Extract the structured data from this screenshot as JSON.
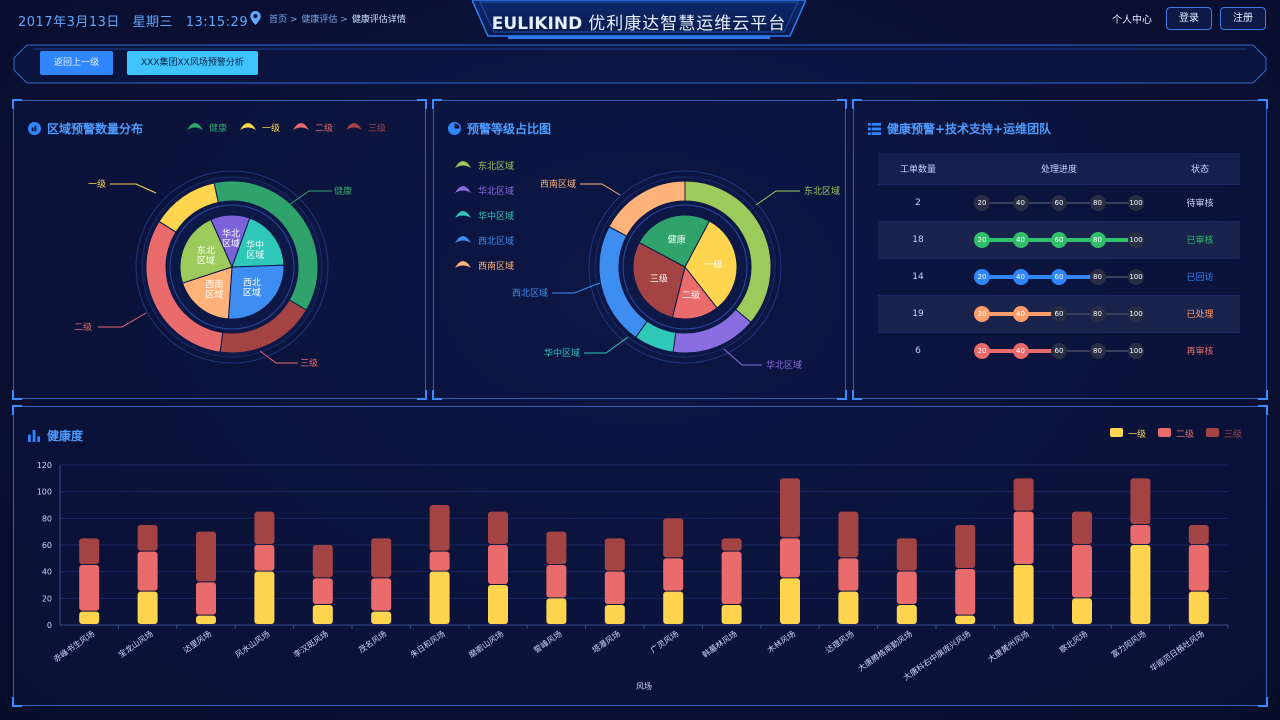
{
  "header": {
    "date": "2017年3月13日",
    "weekday": "星期三",
    "time": "13:15:29",
    "breadcrumbs": [
      "首页 >",
      "健康评估 >",
      "健康评估详情"
    ],
    "brand": "EULIKIND",
    "title": "优利康达智慧运维云平台",
    "user_center": "个人中心",
    "login": "登录",
    "register": "注册"
  },
  "subbar": {
    "back": "返回上一级",
    "tab": "XXX集团XX风场预警分析"
  },
  "panel_region": {
    "title": "区域预警数量分布",
    "legend": [
      {
        "name": "健康",
        "color": "#2fa36b"
      },
      {
        "name": "一级",
        "color": "#ffd54f"
      },
      {
        "name": "二级",
        "color": "#e96b6b"
      },
      {
        "name": "三级",
        "color": "#a34343"
      }
    ],
    "outer_labels": {
      "a": "健康",
      "b": "一级",
      "c": "二级",
      "d": "三级"
    },
    "inner_labels": {
      "p1": "华北区域",
      "p2": "华中区域",
      "p3": "西北区域",
      "p4": "西南区域",
      "p5": "东北区域"
    }
  },
  "panel_level": {
    "title": "预警等级占比图",
    "legend": [
      {
        "name": "东北区域",
        "color": "#9ccb5b"
      },
      {
        "name": "华北区域",
        "color": "#8a6de0"
      },
      {
        "name": "华中区域",
        "color": "#2ec7b8"
      },
      {
        "name": "西北区域",
        "color": "#3d8ef0"
      },
      {
        "name": "西南区域",
        "color": "#ffb27a"
      }
    ],
    "outer_labels": {
      "a": "东北区域",
      "b": "华北区域",
      "c": "华中区域",
      "d": "西北区域",
      "e": "西南区域"
    },
    "inner_labels": {
      "p1": "健康",
      "p2": "一级",
      "p3": "二级",
      "p4": "三级"
    }
  },
  "panel_team": {
    "title": "健康预警+技术支持+运维团队",
    "headers": [
      "工单数量",
      "处理进度",
      "状态"
    ],
    "ticks": [
      "20",
      "40",
      "60",
      "80",
      "100"
    ],
    "rows": [
      {
        "count": "2",
        "progress": 0,
        "status": "待审核",
        "color": "#c9d6ff"
      },
      {
        "count": "18",
        "progress": 4,
        "status": "已审核",
        "color": "#2fbf6b"
      },
      {
        "count": "14",
        "progress": 3,
        "status": "已回访",
        "color": "#2f86ff"
      },
      {
        "count": "19",
        "progress": 2,
        "status": "已处理",
        "color": "#ff9e6b"
      },
      {
        "count": "6",
        "progress": 2,
        "status": "再审核",
        "color": "#e96b6b"
      }
    ]
  },
  "panel_health": {
    "title": "健康度",
    "legend": [
      {
        "name": "一级",
        "color": "#ffd54f"
      },
      {
        "name": "二级",
        "color": "#e96b6b"
      },
      {
        "name": "三级",
        "color": "#a34343"
      }
    ]
  },
  "chart_data": {
    "type": "bar",
    "stacked": true,
    "title": "健康度",
    "xlabel": "风场",
    "ylabel": "",
    "ylim": [
      0,
      120
    ],
    "yticks": [
      0,
      20,
      40,
      60,
      80,
      100,
      120
    ],
    "categories": [
      "赤峰书生风场",
      "宝龙山风场",
      "达里风场",
      "风水山风场",
      "李汉斑风场",
      "茂名风场",
      "朱日和风场",
      "磨嵛山风场",
      "誓峰风场",
      "塔瀑风场",
      "广灵风场",
      "韩墓林风场",
      "木林风场",
      "达理风场",
      "大唐腾格南勤风场",
      "大唐科右中旗庞兴风场",
      "大唐黄州风场",
      "察北风场",
      "富力阳风场",
      "华能范日格吐风场"
    ],
    "series": [
      {
        "name": "一级",
        "color": "#ffd54f",
        "values": [
          10,
          25,
          7,
          40,
          15,
          10,
          40,
          30,
          20,
          15,
          25,
          15,
          35,
          25,
          15,
          7,
          45,
          20,
          60,
          25
        ]
      },
      {
        "name": "二级",
        "color": "#e96b6b",
        "values": [
          35,
          30,
          25,
          20,
          20,
          25,
          15,
          30,
          25,
          25,
          25,
          40,
          30,
          25,
          25,
          35,
          40,
          40,
          15,
          35
        ]
      },
      {
        "name": "三级",
        "color": "#a34343",
        "values": [
          20,
          20,
          38,
          25,
          25,
          30,
          35,
          25,
          25,
          25,
          30,
          10,
          45,
          35,
          25,
          33,
          25,
          25,
          35,
          15
        ]
      }
    ]
  }
}
